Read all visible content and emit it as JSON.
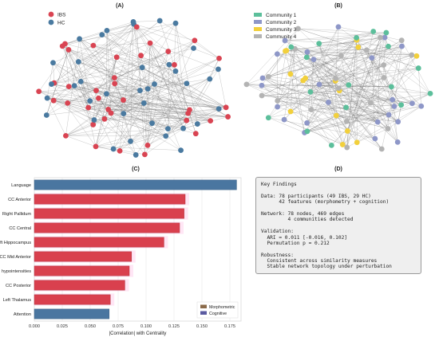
{
  "panels": {
    "a_title": "(A)",
    "b_title": "(B)",
    "c_title": "(C)",
    "d_title": "(D)"
  },
  "colors": {
    "ibs": "#d94452",
    "hc": "#4a7aa0",
    "community_1": "#5cbf9b",
    "community_2": "#8e97c8",
    "community_3": "#f2d03c",
    "community_4": "#b3b3b3",
    "morphometric_bar": "#d9404e",
    "cognitive_bar": "#4a76a0",
    "edge": "#6b6b6b"
  },
  "network_a_legend": [
    "IBS",
    "HC"
  ],
  "network_b_legend": [
    "Community 1",
    "Community 2",
    "Community 3",
    "Community 4"
  ],
  "chart_data": {
    "type": "bar",
    "orientation": "horizontal",
    "title": "(C)",
    "xlabel": "|Correlation| with Centrality",
    "ylabel": "",
    "xlim": [
      0,
      0.185
    ],
    "xticks": [
      "0.000",
      "0.025",
      "0.050",
      "0.075",
      "0.100",
      "0.125",
      "0.150",
      "0.175"
    ],
    "grid": true,
    "legend_position": "bottom-right",
    "legend": [
      "Morphometric",
      "Cognitive"
    ],
    "categories": [
      "Language",
      "CC Anterior",
      "Right Pallidum",
      "CC Central",
      "Left Hippocampus",
      "CC Mid Anterior",
      "WM hypointensities",
      "CC Posterior",
      "Left Thalamus",
      "Attention"
    ],
    "values": [
      0.181,
      0.135,
      0.134,
      0.13,
      0.116,
      0.087,
      0.085,
      0.081,
      0.068,
      0.067
    ],
    "groups": [
      "Cognitive",
      "Morphometric",
      "Morphometric",
      "Morphometric",
      "Morphometric",
      "Morphometric",
      "Morphometric",
      "Morphometric",
      "Morphometric",
      "Cognitive"
    ]
  },
  "findings": {
    "title": "Key Findings",
    "lines": [
      "Data: 78 participants (49 IBS, 29 HC)",
      "      42 features (morphometry + cognition)",
      "",
      "Network: 78 nodes, 469 edges",
      "         4 communities detected",
      "",
      "Validation:",
      "  ARI = 0.011 [-0.016, 0.102]",
      "  Permutation p = 0.212",
      "",
      "Robustness:",
      "  Consistent across similarity measures",
      "  Stable network topology under perturbation"
    ]
  }
}
